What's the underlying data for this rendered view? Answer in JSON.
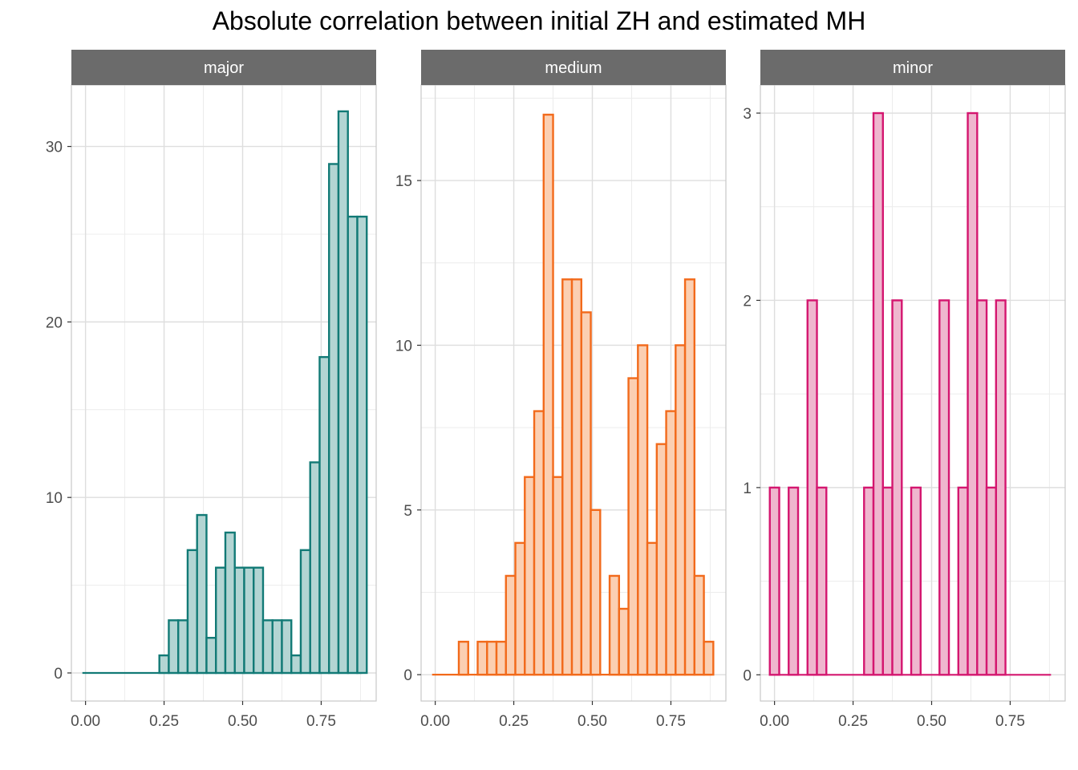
{
  "chart_data": {
    "type": "bar",
    "title": "Absolute correlation between initial ZH and estimated MH",
    "xlabel": "",
    "ylabel": "",
    "grid": true,
    "panels": [
      {
        "name": "major",
        "color": "#127A76",
        "fill": "#B3D5D3",
        "ylim": [
          -1.6,
          33.5
        ],
        "xlim": [
          -0.045,
          0.925
        ],
        "yticks": [
          0,
          10,
          20,
          30
        ],
        "ytick_labels": [
          "0",
          "10",
          "20",
          "30"
        ],
        "xticks": [
          0,
          0.25,
          0.5,
          0.75
        ],
        "xtick_labels": [
          "0.00",
          "0.25",
          "0.50",
          "0.75"
        ],
        "bins": [
          {
            "x": 0.25,
            "count": 1
          },
          {
            "x": 0.28,
            "count": 3
          },
          {
            "x": 0.31,
            "count": 3
          },
          {
            "x": 0.34,
            "count": 7
          },
          {
            "x": 0.37,
            "count": 9
          },
          {
            "x": 0.4,
            "count": 2
          },
          {
            "x": 0.43,
            "count": 6
          },
          {
            "x": 0.46,
            "count": 8
          },
          {
            "x": 0.49,
            "count": 6
          },
          {
            "x": 0.52,
            "count": 6
          },
          {
            "x": 0.55,
            "count": 6
          },
          {
            "x": 0.58,
            "count": 3
          },
          {
            "x": 0.61,
            "count": 3
          },
          {
            "x": 0.64,
            "count": 3
          },
          {
            "x": 0.67,
            "count": 1
          },
          {
            "x": 0.7,
            "count": 7
          },
          {
            "x": 0.73,
            "count": 12
          },
          {
            "x": 0.76,
            "count": 18
          },
          {
            "x": 0.79,
            "count": 29
          },
          {
            "x": 0.82,
            "count": 32
          },
          {
            "x": 0.85,
            "count": 26
          },
          {
            "x": 0.88,
            "count": 26
          }
        ],
        "baseline": [
          -0.01,
          0.88
        ]
      },
      {
        "name": "medium",
        "color": "#F26A1B",
        "fill": "#FBCFB2",
        "ylim": [
          -0.8,
          17.9
        ],
        "xlim": [
          -0.045,
          0.925
        ],
        "yticks": [
          0,
          5,
          10,
          15
        ],
        "ytick_labels": [
          "0",
          "5",
          "10",
          "15"
        ],
        "xticks": [
          0,
          0.25,
          0.5,
          0.75
        ],
        "xtick_labels": [
          "0.00",
          "0.25",
          "0.50",
          "0.75"
        ],
        "bins": [
          {
            "x": 0.09,
            "count": 1
          },
          {
            "x": 0.12,
            "count": 0
          },
          {
            "x": 0.15,
            "count": 1
          },
          {
            "x": 0.18,
            "count": 1
          },
          {
            "x": 0.21,
            "count": 1
          },
          {
            "x": 0.24,
            "count": 3
          },
          {
            "x": 0.27,
            "count": 4
          },
          {
            "x": 0.3,
            "count": 6
          },
          {
            "x": 0.33,
            "count": 8
          },
          {
            "x": 0.36,
            "count": 17
          },
          {
            "x": 0.39,
            "count": 6
          },
          {
            "x": 0.42,
            "count": 12
          },
          {
            "x": 0.45,
            "count": 12
          },
          {
            "x": 0.48,
            "count": 11
          },
          {
            "x": 0.51,
            "count": 5
          },
          {
            "x": 0.54,
            "count": 0
          },
          {
            "x": 0.57,
            "count": 3
          },
          {
            "x": 0.6,
            "count": 2
          },
          {
            "x": 0.63,
            "count": 9
          },
          {
            "x": 0.66,
            "count": 10
          },
          {
            "x": 0.69,
            "count": 4
          },
          {
            "x": 0.72,
            "count": 7
          },
          {
            "x": 0.75,
            "count": 8
          },
          {
            "x": 0.78,
            "count": 10
          },
          {
            "x": 0.81,
            "count": 12
          },
          {
            "x": 0.84,
            "count": 3
          },
          {
            "x": 0.87,
            "count": 1
          }
        ],
        "baseline": [
          -0.01,
          0.88
        ]
      },
      {
        "name": "minor",
        "color": "#D4166F",
        "fill": "#EFB6CE",
        "ylim": [
          -0.14,
          3.15
        ],
        "xlim": [
          -0.045,
          0.925
        ],
        "yticks": [
          0,
          1,
          2,
          3
        ],
        "ytick_labels": [
          "0",
          "1",
          "2",
          "3"
        ],
        "xticks": [
          0,
          0.25,
          0.5,
          0.75
        ],
        "xtick_labels": [
          "0.00",
          "0.25",
          "0.50",
          "0.75"
        ],
        "bins": [
          {
            "x": 0.0,
            "count": 1
          },
          {
            "x": 0.06,
            "count": 1
          },
          {
            "x": 0.12,
            "count": 2
          },
          {
            "x": 0.15,
            "count": 1
          },
          {
            "x": 0.3,
            "count": 1
          },
          {
            "x": 0.33,
            "count": 3
          },
          {
            "x": 0.36,
            "count": 1
          },
          {
            "x": 0.39,
            "count": 2
          },
          {
            "x": 0.45,
            "count": 1
          },
          {
            "x": 0.54,
            "count": 2
          },
          {
            "x": 0.6,
            "count": 1
          },
          {
            "x": 0.63,
            "count": 3
          },
          {
            "x": 0.66,
            "count": 2
          },
          {
            "x": 0.69,
            "count": 1
          },
          {
            "x": 0.72,
            "count": 2
          }
        ],
        "baseline": [
          -0.015,
          0.88
        ]
      }
    ]
  }
}
